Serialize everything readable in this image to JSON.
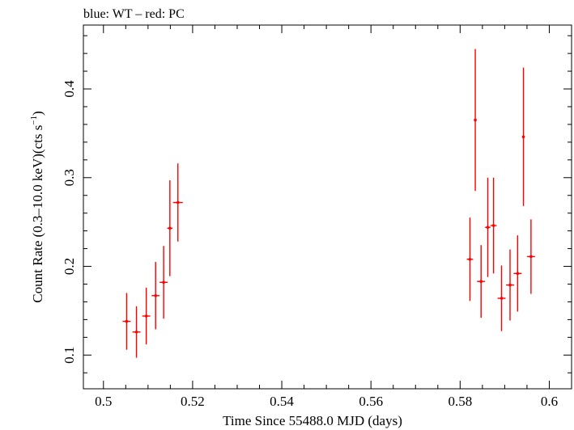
{
  "chart_data": {
    "type": "scatter",
    "title": "blue: WT – red: PC",
    "xlabel": "Time Since 55488.0 MJD (days)",
    "ylabel_main": "Count Rate (0.3–10.0 keV)(cts s",
    "ylabel_sup": "−1",
    "ylabel_end": ")",
    "xlim": [
      0.4955,
      0.605
    ],
    "ylim": [
      0.062,
      0.472
    ],
    "x_ticks": [
      0.5,
      0.52,
      0.54,
      0.56,
      0.58,
      0.6
    ],
    "x_tick_labels": [
      "0.5",
      "0.52",
      "0.54",
      "0.56",
      "0.58",
      "0.6"
    ],
    "y_ticks": [
      0.1,
      0.2,
      0.3,
      0.4
    ],
    "y_tick_labels": [
      "0.1",
      "0.2",
      "0.3",
      "0.4"
    ],
    "x_minor_step": 0.005,
    "y_minor_step": 0.02,
    "grid": false,
    "series": [
      {
        "color": "#ff0000",
        "points": [
          {
            "x": 0.5052,
            "xerr": 0.0009,
            "y": 0.138,
            "yerr": 0.032
          },
          {
            "x": 0.5074,
            "xerr": 0.0009,
            "y": 0.126,
            "yerr": 0.029
          },
          {
            "x": 0.5096,
            "xerr": 0.0009,
            "y": 0.144,
            "yerr": 0.032
          },
          {
            "x": 0.5117,
            "xerr": 0.0009,
            "y": 0.167,
            "yerr": 0.038
          },
          {
            "x": 0.5135,
            "xerr": 0.0009,
            "y": 0.182,
            "yerr": 0.041
          },
          {
            "x": 0.5149,
            "xerr": 0.0006,
            "y": 0.243,
            "yerr": 0.054
          },
          {
            "x": 0.5167,
            "xerr": 0.0011,
            "y": 0.272,
            "yerr": 0.044
          },
          {
            "x": 0.5822,
            "xerr": 0.0007,
            "y": 0.208,
            "yerr": 0.047
          },
          {
            "x": 0.5834,
            "xerr": 0.0002,
            "y": 0.365,
            "yerr": 0.08
          },
          {
            "x": 0.5847,
            "xerr": 0.0009,
            "y": 0.183,
            "yerr": 0.041
          },
          {
            "x": 0.5862,
            "xerr": 0.0006,
            "y": 0.244,
            "yerr": 0.056
          },
          {
            "x": 0.5875,
            "xerr": 0.0007,
            "y": 0.246,
            "yerr": 0.054
          },
          {
            "x": 0.5893,
            "xerr": 0.0009,
            "y": 0.164,
            "yerr": 0.037
          },
          {
            "x": 0.5912,
            "xerr": 0.0009,
            "y": 0.179,
            "yerr": 0.04
          },
          {
            "x": 0.5929,
            "xerr": 0.0009,
            "y": 0.192,
            "yerr": 0.043
          },
          {
            "x": 0.5942,
            "xerr": 0.0002,
            "y": 0.346,
            "yerr": 0.078
          },
          {
            "x": 0.5959,
            "xerr": 0.0009,
            "y": 0.211,
            "yerr": 0.042
          }
        ]
      }
    ]
  }
}
